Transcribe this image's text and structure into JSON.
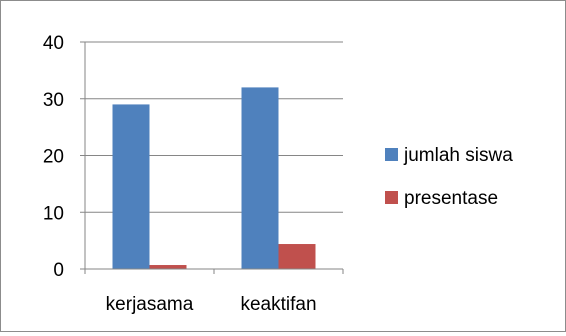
{
  "chart_data": {
    "type": "bar",
    "categories": [
      "kerjasama",
      "keaktifan"
    ],
    "series": [
      {
        "name": "jumlah siswa",
        "values": [
          29,
          32
        ],
        "color": "#4f81bd"
      },
      {
        "name": "presentase",
        "values": [
          0.7,
          4.4
        ],
        "color": "#c0504d"
      }
    ],
    "y_ticks": [
      "0",
      "10",
      "20",
      "30",
      "40"
    ],
    "ylim": [
      0,
      40
    ],
    "grid": true,
    "legend_position": "right",
    "title": "",
    "xlabel": "",
    "ylabel": ""
  }
}
